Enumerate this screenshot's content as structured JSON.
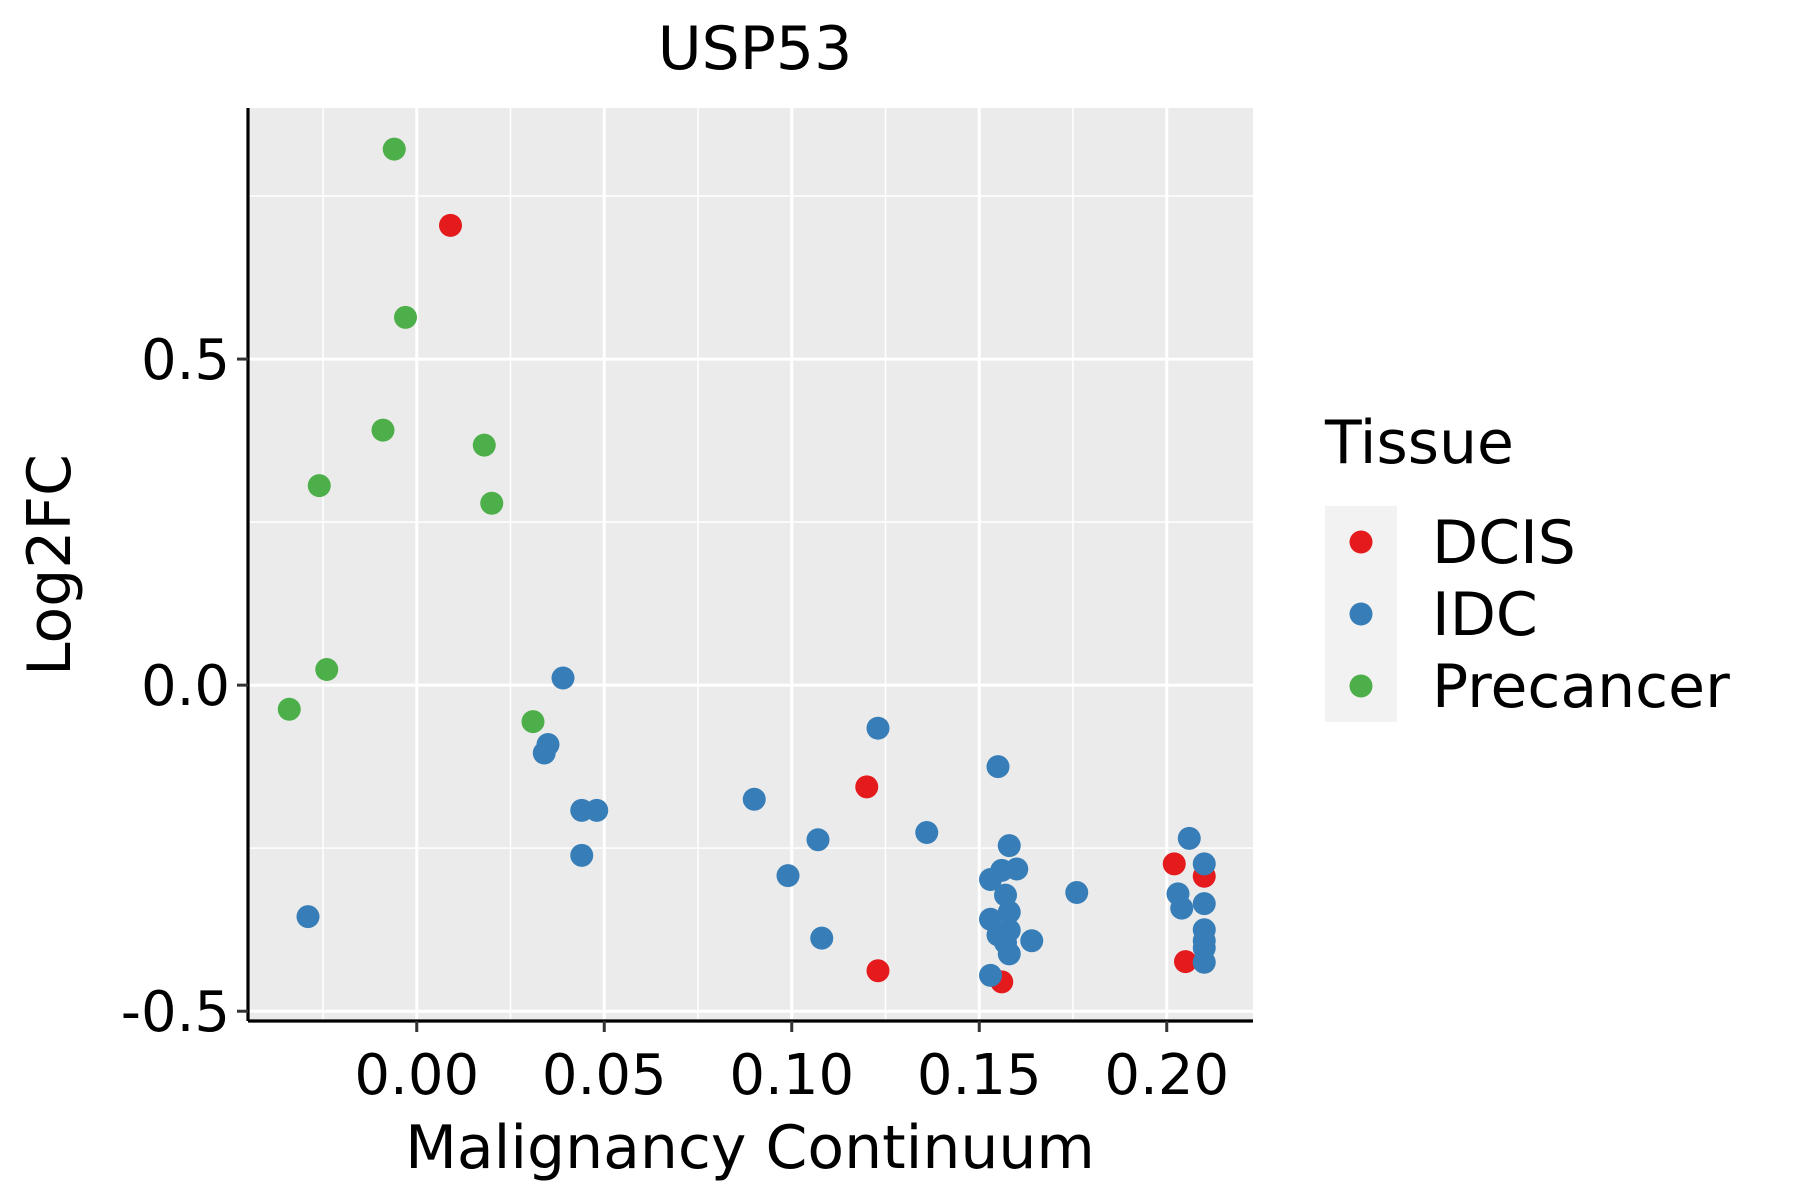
{
  "chart_data": {
    "type": "scatter",
    "title": "USP53",
    "xlabel": "Malignancy Continuum",
    "ylabel": "Log2FC",
    "xlim": [
      -0.045,
      0.223
    ],
    "ylim": [
      -0.515,
      0.885
    ],
    "xticks": [
      0.0,
      0.05,
      0.1,
      0.15,
      0.2
    ],
    "xtick_labels": [
      "0.00",
      "0.05",
      "0.10",
      "0.15",
      "0.20"
    ],
    "yticks": [
      -0.5,
      0.0,
      0.5
    ],
    "ytick_labels": [
      "-0.5",
      "0.0",
      "0.5"
    ],
    "grid": true,
    "legend": {
      "title": "Tissue",
      "position": "right",
      "entries": [
        {
          "name": "DCIS",
          "color": "#E41A1C"
        },
        {
          "name": "IDC",
          "color": "#377EB8"
        },
        {
          "name": "Precancer",
          "color": "#4DAF4A"
        }
      ]
    },
    "series": [
      {
        "name": "DCIS",
        "color": "#E41A1C",
        "points": [
          {
            "x": 0.009,
            "y": 0.705
          },
          {
            "x": 0.12,
            "y": -0.156
          },
          {
            "x": 0.123,
            "y": -0.438
          },
          {
            "x": 0.156,
            "y": -0.455
          },
          {
            "x": 0.202,
            "y": -0.274
          },
          {
            "x": 0.205,
            "y": -0.424
          },
          {
            "x": 0.21,
            "y": -0.293
          }
        ]
      },
      {
        "name": "IDC",
        "color": "#377EB8",
        "points": [
          {
            "x": -0.029,
            "y": -0.355
          },
          {
            "x": 0.034,
            "y": -0.104
          },
          {
            "x": 0.035,
            "y": -0.091
          },
          {
            "x": 0.039,
            "y": 0.011
          },
          {
            "x": 0.044,
            "y": -0.192
          },
          {
            "x": 0.044,
            "y": -0.261
          },
          {
            "x": 0.048,
            "y": -0.192
          },
          {
            "x": 0.09,
            "y": -0.175
          },
          {
            "x": 0.099,
            "y": -0.292
          },
          {
            "x": 0.107,
            "y": -0.237
          },
          {
            "x": 0.108,
            "y": -0.388
          },
          {
            "x": 0.123,
            "y": -0.066
          },
          {
            "x": 0.136,
            "y": -0.226
          },
          {
            "x": 0.153,
            "y": -0.445
          },
          {
            "x": 0.153,
            "y": -0.359
          },
          {
            "x": 0.153,
            "y": -0.298
          },
          {
            "x": 0.155,
            "y": -0.125
          },
          {
            "x": 0.155,
            "y": -0.383
          },
          {
            "x": 0.156,
            "y": -0.284
          },
          {
            "x": 0.157,
            "y": -0.322
          },
          {
            "x": 0.157,
            "y": -0.395
          },
          {
            "x": 0.158,
            "y": -0.246
          },
          {
            "x": 0.158,
            "y": -0.348
          },
          {
            "x": 0.158,
            "y": -0.376
          },
          {
            "x": 0.158,
            "y": -0.412
          },
          {
            "x": 0.16,
            "y": -0.282
          },
          {
            "x": 0.164,
            "y": -0.392
          },
          {
            "x": 0.176,
            "y": -0.318
          },
          {
            "x": 0.203,
            "y": -0.32
          },
          {
            "x": 0.204,
            "y": -0.342
          },
          {
            "x": 0.206,
            "y": -0.235
          },
          {
            "x": 0.21,
            "y": -0.274
          },
          {
            "x": 0.21,
            "y": -0.335
          },
          {
            "x": 0.21,
            "y": -0.375
          },
          {
            "x": 0.21,
            "y": -0.392
          },
          {
            "x": 0.21,
            "y": -0.403
          },
          {
            "x": 0.21,
            "y": -0.425
          }
        ]
      },
      {
        "name": "Precancer",
        "color": "#4DAF4A",
        "points": [
          {
            "x": -0.034,
            "y": -0.037
          },
          {
            "x": -0.026,
            "y": 0.306
          },
          {
            "x": -0.024,
            "y": 0.024
          },
          {
            "x": -0.009,
            "y": 0.391
          },
          {
            "x": -0.006,
            "y": 0.822
          },
          {
            "x": -0.003,
            "y": 0.564
          },
          {
            "x": 0.018,
            "y": 0.368
          },
          {
            "x": 0.02,
            "y": 0.279
          },
          {
            "x": 0.031,
            "y": -0.056
          }
        ]
      }
    ]
  }
}
